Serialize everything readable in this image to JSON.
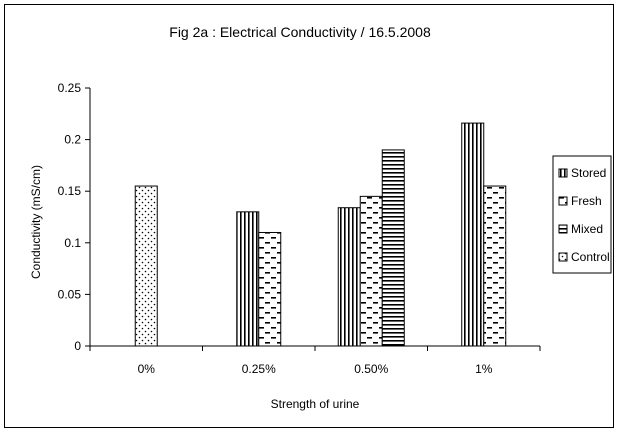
{
  "chart_data": {
    "type": "bar",
    "title": "Fig 2a : Electrical Conductivity / 16.5.2008",
    "xlabel": "Strength of urine",
    "ylabel": "Conductivity (mS/cm)",
    "categories": [
      "0%",
      "0.25%",
      "0.50%",
      "1%"
    ],
    "ylim": [
      0,
      0.25
    ],
    "yticks": [
      "0",
      "0.05",
      "0.1",
      "0.15",
      "0.2",
      "0.25"
    ],
    "grid": false,
    "legend_position": "right",
    "series": [
      {
        "name": "Stored",
        "pattern": "vertical-lines",
        "values": [
          null,
          0.13,
          0.134,
          0.216
        ]
      },
      {
        "name": "Fresh",
        "pattern": "dashes",
        "values": [
          null,
          0.11,
          0.145,
          0.155
        ]
      },
      {
        "name": "Mixed",
        "pattern": "horizontal-lines",
        "values": [
          null,
          null,
          0.19,
          null
        ]
      },
      {
        "name": "Control",
        "pattern": "dots",
        "values": [
          0.155,
          null,
          null,
          null
        ]
      }
    ]
  }
}
